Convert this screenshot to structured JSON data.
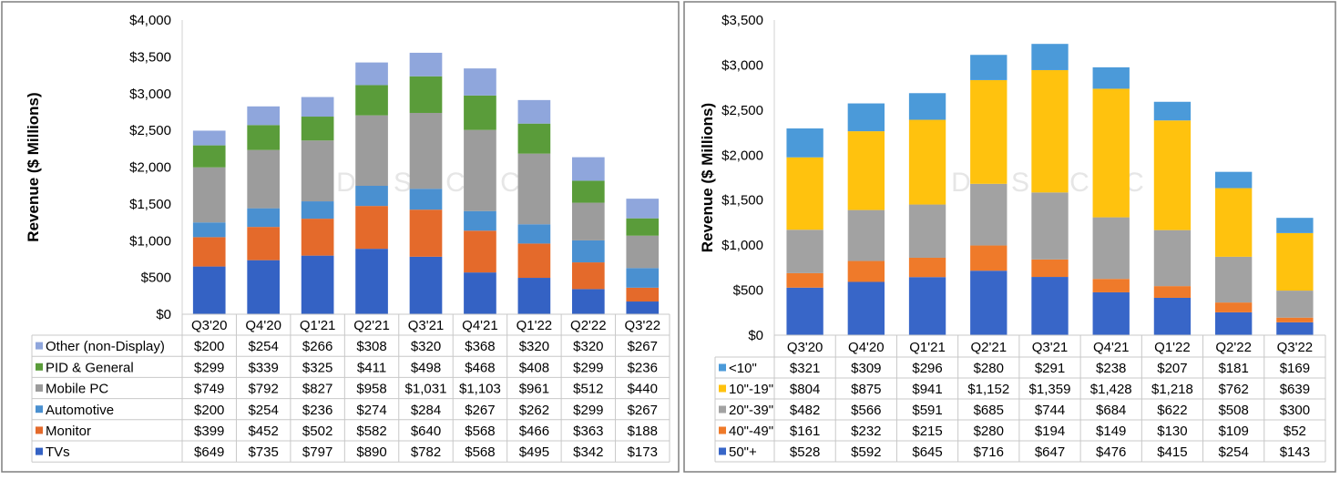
{
  "watermark": "DSCC",
  "chart_data": [
    {
      "type": "bar",
      "stacked": true,
      "title": "",
      "xlabel": "",
      "ylabel": "Revenue ($ Millions)",
      "ylim": [
        0,
        4000
      ],
      "yticks": [
        "$0",
        "$500",
        "$1,000",
        "$1,500",
        "$2,000",
        "$2,500",
        "$3,000",
        "$3,500",
        "$4,000"
      ],
      "grid": false,
      "legend": "data-table",
      "categories": [
        "Q3'20",
        "Q4'20",
        "Q1'21",
        "Q2'21",
        "Q3'21",
        "Q4'21",
        "Q1'22",
        "Q2'22",
        "Q3'22"
      ],
      "series": [
        {
          "name": "TVs",
          "color": "#3462c4",
          "values": [
            649,
            735,
            797,
            890,
            782,
            568,
            495,
            342,
            173
          ],
          "labels": [
            "$649",
            "$735",
            "$797",
            "$890",
            "$782",
            "$568",
            "$495",
            "$342",
            "$173"
          ]
        },
        {
          "name": "Monitor",
          "color": "#e46a2b",
          "values": [
            399,
            452,
            502,
            582,
            640,
            568,
            466,
            363,
            188
          ],
          "labels": [
            "$399",
            "$452",
            "$502",
            "$582",
            "$640",
            "$568",
            "$466",
            "$363",
            "$188"
          ]
        },
        {
          "name": "Automotive",
          "color": "#4a90d0",
          "values": [
            200,
            254,
            236,
            274,
            284,
            267,
            262,
            299,
            267
          ],
          "labels": [
            "$200",
            "$254",
            "$236",
            "$274",
            "$284",
            "$267",
            "$262",
            "$299",
            "$267"
          ]
        },
        {
          "name": "Mobile PC",
          "color": "#9c9c9c",
          "values": [
            749,
            792,
            827,
            958,
            1031,
            1103,
            961,
            512,
            440
          ],
          "labels": [
            "$749",
            "$792",
            "$827",
            "$958",
            "$1,031",
            "$1,103",
            "$961",
            "$512",
            "$440"
          ]
        },
        {
          "name": "PID & General",
          "color": "#5a9c3a",
          "values": [
            299,
            339,
            325,
            411,
            498,
            468,
            408,
            299,
            236
          ],
          "labels": [
            "$299",
            "$339",
            "$325",
            "$411",
            "$498",
            "$468",
            "$408",
            "$299",
            "$236"
          ]
        },
        {
          "name": "Other (non-Display)",
          "color": "#8fa6dc",
          "values": [
            200,
            254,
            266,
            308,
            320,
            368,
            320,
            320,
            267
          ],
          "labels": [
            "$200",
            "$254",
            "$266",
            "$308",
            "$320",
            "$368",
            "$320",
            "$320",
            "$267"
          ]
        }
      ]
    },
    {
      "type": "bar",
      "stacked": true,
      "title": "",
      "xlabel": "",
      "ylabel": "Revenue ($ Millions)",
      "ylim": [
        0,
        3500
      ],
      "yticks": [
        "$0",
        "$500",
        "$1,000",
        "$1,500",
        "$2,000",
        "$2,500",
        "$3,000",
        "$3,500"
      ],
      "grid": false,
      "legend": "data-table",
      "categories": [
        "Q3'20",
        "Q4'20",
        "Q1'21",
        "Q2'21",
        "Q3'21",
        "Q4'21",
        "Q1'22",
        "Q2'22",
        "Q3'22"
      ],
      "series": [
        {
          "name": "50\"+",
          "color": "#3866c8",
          "values": [
            528,
            592,
            645,
            716,
            647,
            476,
            415,
            254,
            143
          ],
          "labels": [
            "$528",
            "$592",
            "$645",
            "$716",
            "$647",
            "$476",
            "$415",
            "$254",
            "$143"
          ]
        },
        {
          "name": "40\"-49\"",
          "color": "#ef7a2a",
          "values": [
            161,
            232,
            215,
            280,
            194,
            149,
            130,
            109,
            52
          ],
          "labels": [
            "$161",
            "$232",
            "$215",
            "$280",
            "$194",
            "$149",
            "$130",
            "$109",
            "$52"
          ]
        },
        {
          "name": "20\"-39\"",
          "color": "#a2a2a2",
          "values": [
            482,
            566,
            591,
            685,
            744,
            684,
            622,
            508,
            300
          ],
          "labels": [
            "$482",
            "$566",
            "$591",
            "$685",
            "$744",
            "$684",
            "$622",
            "$508",
            "$300"
          ]
        },
        {
          "name": "10\"-19\"",
          "color": "#ffc20e",
          "values": [
            804,
            875,
            941,
            1152,
            1359,
            1428,
            1218,
            762,
            639
          ],
          "labels": [
            "$804",
            "$875",
            "$941",
            "$1,152",
            "$1,359",
            "$1,428",
            "$1,218",
            "$762",
            "$639"
          ]
        },
        {
          "name": "<10\"",
          "color": "#4b9ad9",
          "values": [
            321,
            309,
            296,
            280,
            291,
            238,
            207,
            181,
            169
          ],
          "labels": [
            "$321",
            "$309",
            "$296",
            "$280",
            "$291",
            "$238",
            "$207",
            "$181",
            "$169"
          ]
        }
      ]
    }
  ]
}
